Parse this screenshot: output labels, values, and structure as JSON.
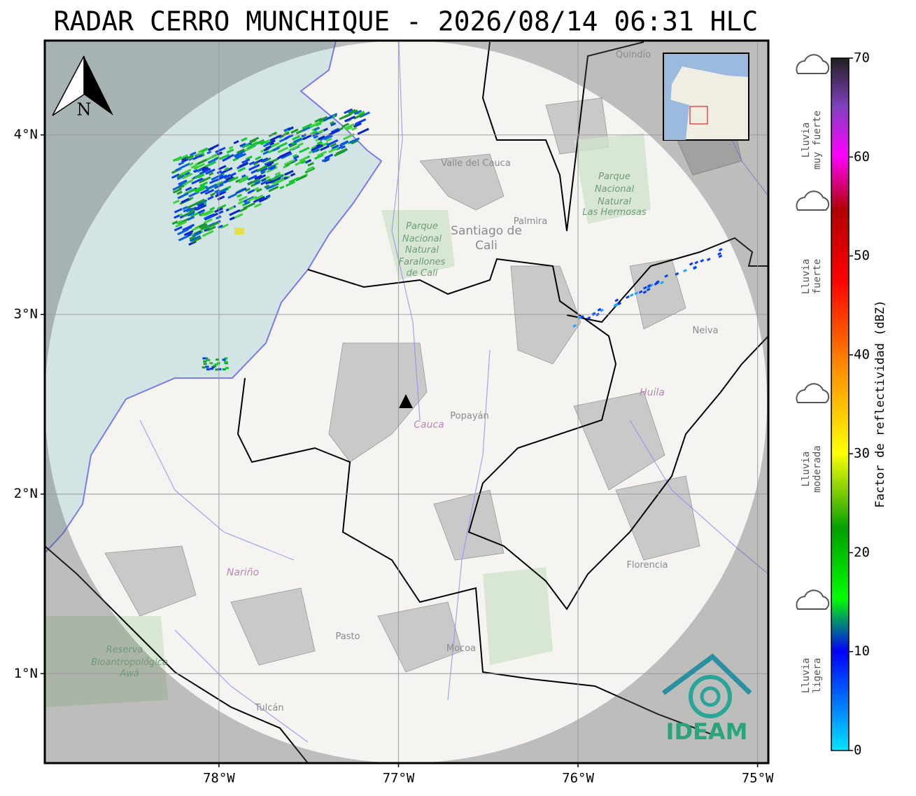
{
  "title": "RADAR CERRO MUNCHIQUE - 2026/08/14 06:31 HLC",
  "map": {
    "xlim": [
      -78.97,
      -74.94
    ],
    "ylim": [
      0.502,
      4.525
    ],
    "xticks": [
      {
        "value": -78,
        "label": "78°W"
      },
      {
        "value": -77,
        "label": "77°W"
      },
      {
        "value": -76,
        "label": "76°W"
      },
      {
        "value": -75,
        "label": "75°W"
      }
    ],
    "yticks": [
      {
        "value": 4,
        "label": "4°N"
      },
      {
        "value": 3,
        "label": "3°N"
      },
      {
        "value": 2,
        "label": "2°N"
      },
      {
        "value": 1,
        "label": "1°N"
      }
    ],
    "north": "N",
    "places": [
      "Quindío",
      "Valle del Cauca",
      "Parque",
      "Nacional",
      "Natural",
      "Las Hermosas",
      "Santiago de",
      "Cali",
      "Palmira",
      "Parque",
      "Nacional",
      "Natural",
      "Farallones",
      "de Cali",
      "Neiva",
      "Huila",
      "Cauca",
      "Popayán",
      "Nariño",
      "Florencia",
      "Pasto",
      "Mocoa",
      "Tulcán",
      "Reserva",
      "Bioantropológica",
      "Awá"
    ]
  },
  "logo": "IDEAM",
  "colorbar": {
    "label": "Factor de reflectividad (dBZ)",
    "range": [
      0,
      70
    ],
    "ticks": [
      0,
      10,
      20,
      30,
      40,
      50,
      60,
      70
    ],
    "rain_levels": [
      [
        "Lluvia",
        "muy fuerte"
      ],
      [
        "Lluvia",
        "fuerte"
      ],
      [
        "Lluvia",
        "moderada"
      ],
      [
        "Lluvia",
        "ligera"
      ]
    ]
  }
}
